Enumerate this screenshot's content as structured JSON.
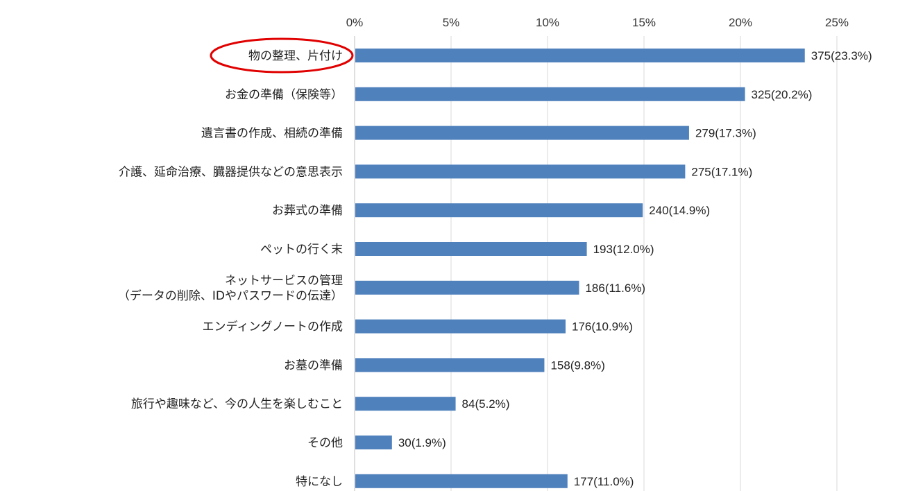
{
  "chart_data": {
    "type": "bar",
    "orientation": "horizontal",
    "categories": [
      [
        "物の整理、片付け"
      ],
      [
        "お金の準備（保険等）"
      ],
      [
        "遺言書の作成、相続の準備"
      ],
      [
        "介護、延命治療、臓器提供などの意思表示"
      ],
      [
        "お葬式の準備"
      ],
      [
        "ペットの行く末"
      ],
      [
        "ネットサービスの管理",
        "（データの削除、IDやパスワードの伝達）"
      ],
      [
        "エンディングノートの作成"
      ],
      [
        "お墓の準備"
      ],
      [
        "旅行や趣味など、今の人生を楽しむこと"
      ],
      [
        "その他"
      ],
      [
        "特になし"
      ]
    ],
    "values": [
      23.3,
      20.2,
      17.3,
      17.1,
      14.9,
      12.0,
      11.6,
      10.9,
      9.8,
      5.2,
      1.9,
      11.0
    ],
    "counts": [
      375,
      325,
      279,
      275,
      240,
      193,
      186,
      176,
      158,
      84,
      30,
      177
    ],
    "value_labels": [
      "375(23.3%)",
      "325(20.2%)",
      "279(17.3%)",
      "275(17.1%)",
      "240(14.9%)",
      "193(12.0%)",
      "186(11.6%)",
      "176(10.9%)",
      "158(9.8%)",
      "84(5.2%)",
      "30(1.9%)",
      "177(11.0%)"
    ],
    "xlim": [
      0,
      25
    ],
    "xticks": [
      "0%",
      "5%",
      "10%",
      "15%",
      "20%",
      "25%"
    ],
    "x_axis_position": "top",
    "grid": true,
    "bar_color": "#4f81bd",
    "highlight": {
      "category_index": 0,
      "shape": "ellipse",
      "color": "#e00000"
    }
  }
}
